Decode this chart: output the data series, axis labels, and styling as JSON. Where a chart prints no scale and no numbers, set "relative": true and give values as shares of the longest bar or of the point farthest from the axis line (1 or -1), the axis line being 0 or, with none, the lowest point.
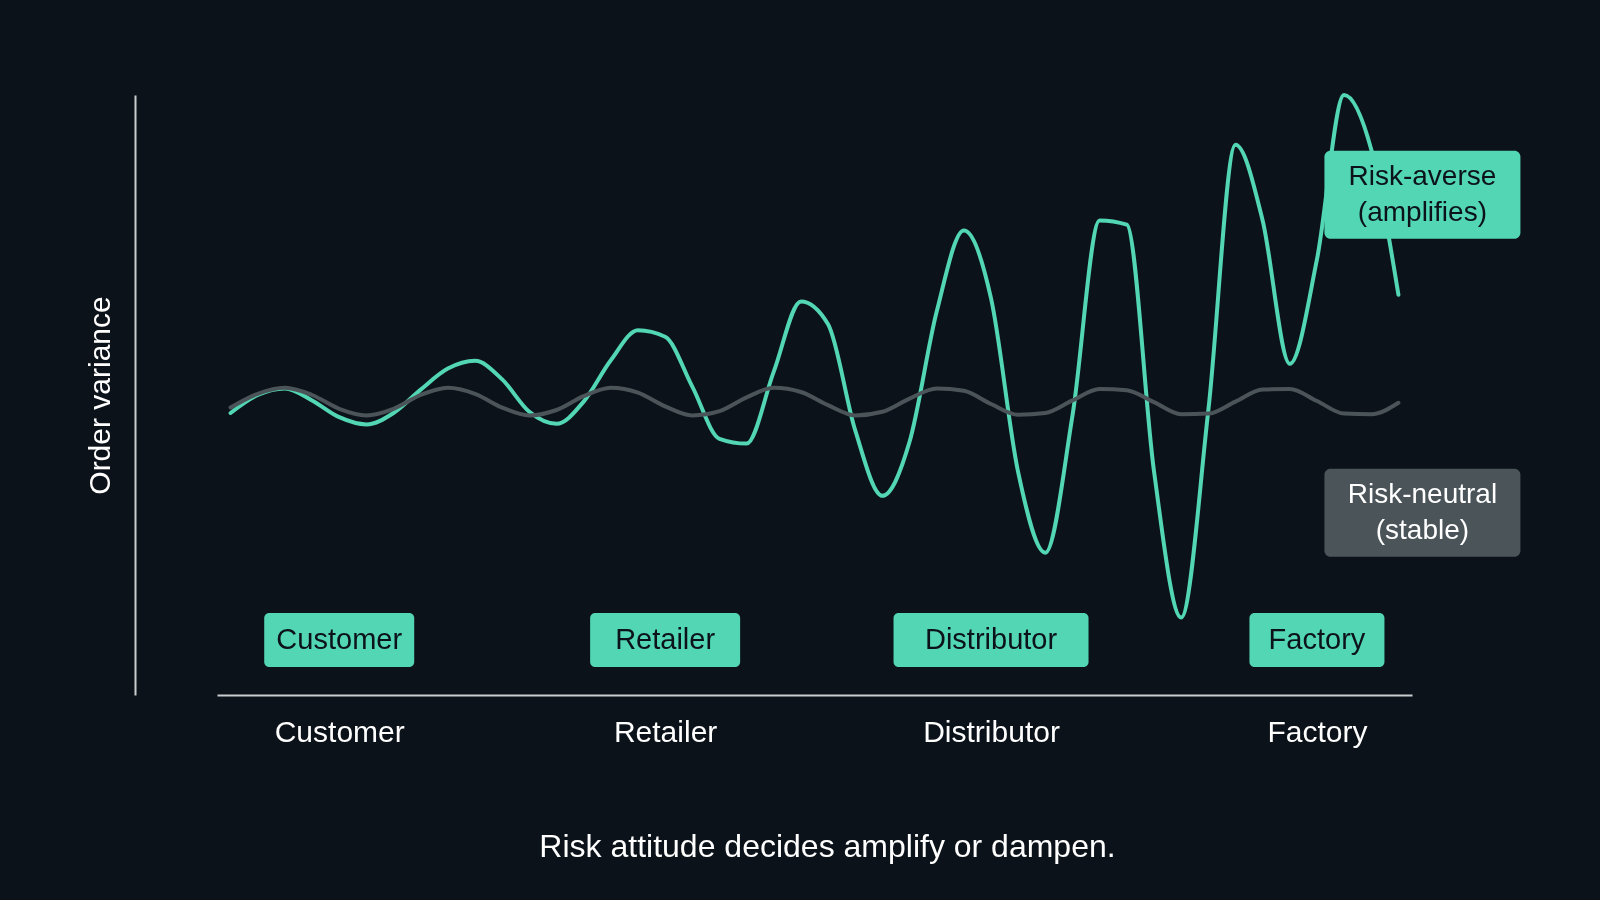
{
  "chart_data": {
    "type": "line",
    "relative": true,
    "ylabel": "Order variance",
    "categories": [
      null,
      null,
      null,
      null,
      "Customer",
      null,
      null,
      null,
      null,
      null,
      null,
      null,
      null,
      null,
      null,
      null,
      "Retailer",
      null,
      null,
      null,
      null,
      null,
      null,
      null,
      null,
      null,
      null,
      null,
      "Distributor",
      null,
      null,
      null,
      null,
      null,
      null,
      null,
      null,
      null,
      null,
      null,
      "Factory",
      null,
      null,
      null
    ],
    "grid": false,
    "legend": false,
    "marker": "none",
    "line_style": "solid",
    "series": [
      {
        "name": "Risk-averse (amplifies)",
        "color": "#52d6b4",
        "values": [
          0.47,
          0.5,
          0.511,
          0.491,
          0.463,
          0.451,
          0.47,
          0.509,
          0.544,
          0.557,
          0.526,
          0.472,
          0.452,
          0.489,
          0.558,
          0.608,
          0.597,
          0.514,
          0.427,
          0.419,
          0.539,
          0.656,
          0.618,
          0.441,
          0.332,
          0.422,
          0.639,
          0.774,
          0.661,
          0.371,
          0.237,
          0.466,
          0.791,
          0.784,
          0.373,
          0.129,
          0.474,
          0.917,
          0.791,
          0.552,
          0.726,
          1.0,
          0.909,
          0.667
        ]
      },
      {
        "name": "Risk-neutral (stable)",
        "color": "#4b5459",
        "values": [
          0.479,
          0.502,
          0.512,
          0.5,
          0.477,
          0.466,
          0.477,
          0.5,
          0.512,
          0.502,
          0.479,
          0.466,
          0.475,
          0.498,
          0.512,
          0.504,
          0.481,
          0.466,
          0.473,
          0.496,
          0.512,
          0.505,
          0.483,
          0.466,
          0.472,
          0.494,
          0.511,
          0.507,
          0.485,
          0.467,
          0.47,
          0.491,
          0.51,
          0.508,
          0.488,
          0.468,
          0.469,
          0.489,
          0.509,
          0.51,
          0.49,
          0.469,
          0.468,
          0.487
        ]
      }
    ],
    "annotations": [
      "Customer",
      "Retailer",
      "Distributor",
      "Factory",
      "Risk attitude decides amplify or dampen."
    ]
  }
}
